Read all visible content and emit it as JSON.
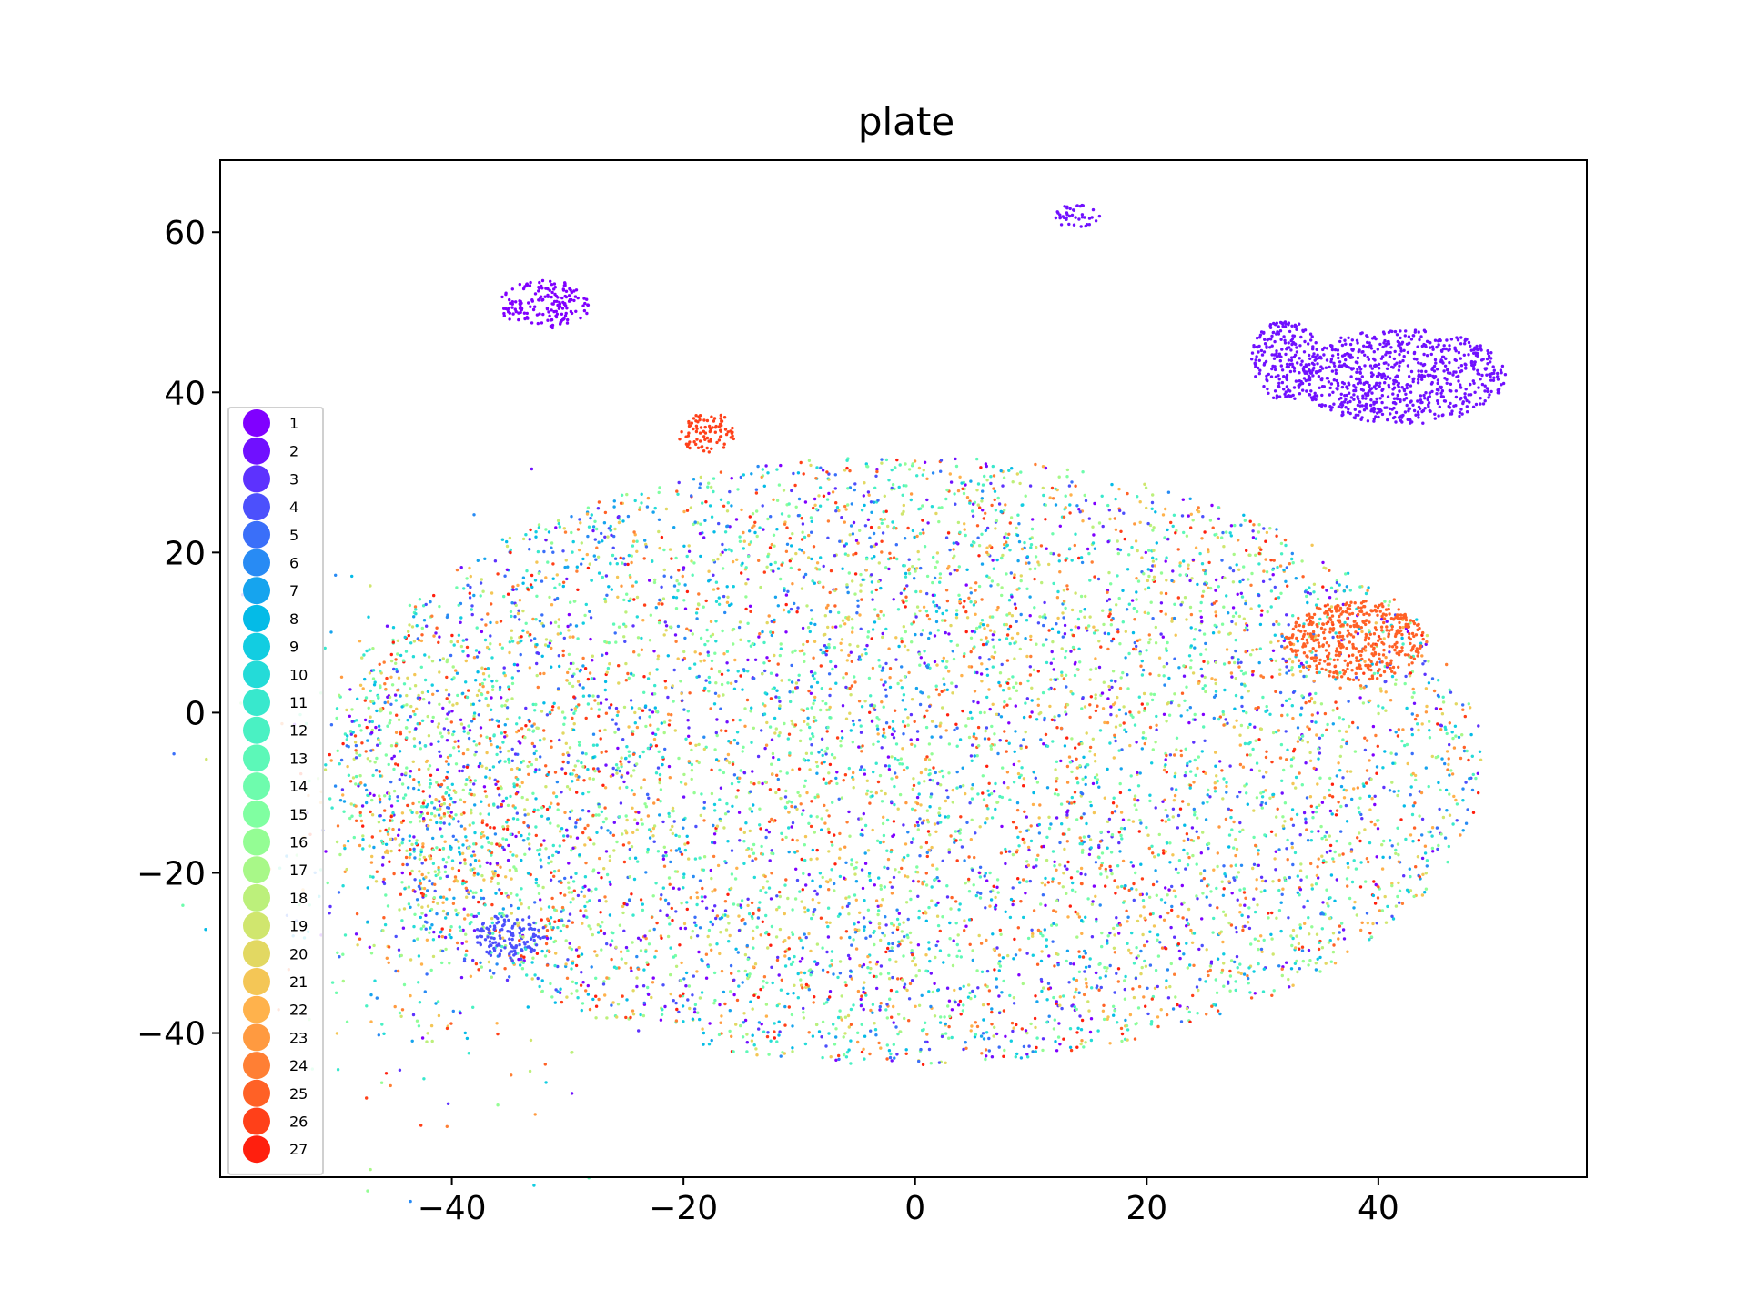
{
  "chart_data": {
    "type": "scatter",
    "title": "plate",
    "xlabel": "",
    "ylabel": "",
    "xlim": [
      -60,
      58
    ],
    "ylim": [
      -58,
      69
    ],
    "x_ticks": [
      -40,
      -20,
      0,
      20,
      40
    ],
    "y_ticks": [
      -40,
      -20,
      0,
      20,
      40,
      60
    ],
    "x_tick_labels": [
      "−40",
      "−20",
      "0",
      "20",
      "40"
    ],
    "y_tick_labels": [
      "−40",
      "−20",
      "0",
      "20",
      "40",
      "60"
    ],
    "grid": false,
    "legend_position": "left",
    "series": [
      {
        "name": "1",
        "color": "#8000ff"
      },
      {
        "name": "2",
        "color": "#7010ff"
      },
      {
        "name": "3",
        "color": "#5d32fe"
      },
      {
        "name": "4",
        "color": "#4c50fc"
      },
      {
        "name": "5",
        "color": "#3a6ff9"
      },
      {
        "name": "6",
        "color": "#288bf4"
      },
      {
        "name": "7",
        "color": "#16a4ee"
      },
      {
        "name": "8",
        "color": "#04bbe7"
      },
      {
        "name": "9",
        "color": "#12cde1"
      },
      {
        "name": "10",
        "color": "#24dbd8"
      },
      {
        "name": "11",
        "color": "#38e8cd"
      },
      {
        "name": "12",
        "color": "#4af1c3"
      },
      {
        "name": "13",
        "color": "#5cf8b8"
      },
      {
        "name": "14",
        "color": "#6efcad"
      },
      {
        "name": "15",
        "color": "#80ffa1"
      },
      {
        "name": "16",
        "color": "#94fd94"
      },
      {
        "name": "17",
        "color": "#a8f888"
      },
      {
        "name": "18",
        "color": "#bcf07b"
      },
      {
        "name": "19",
        "color": "#d0e66e"
      },
      {
        "name": "20",
        "color": "#e2d862"
      },
      {
        "name": "21",
        "color": "#f4c656"
      },
      {
        "name": "22",
        "color": "#ffb24c"
      },
      {
        "name": "23",
        "color": "#ff9a40"
      },
      {
        "name": "24",
        "color": "#ff7f34"
      },
      {
        "name": "25",
        "color": "#ff6126"
      },
      {
        "name": "26",
        "color": "#ff4019"
      },
      {
        "name": "27",
        "color": "#ff1f0e"
      }
    ],
    "clusters": [
      {
        "label": "2",
        "cx": 42,
        "cy": 42,
        "rx": 9,
        "ry": 6
      },
      {
        "label": "2",
        "cx": 32,
        "cy": 44,
        "rx": 3,
        "ry": 5
      },
      {
        "label": "1",
        "cx": -32,
        "cy": 51,
        "rx": 4,
        "ry": 3
      },
      {
        "label": "2",
        "cx": 14,
        "cy": 62,
        "rx": 2,
        "ry": 1.5
      },
      {
        "label": "26",
        "cx": -18,
        "cy": 35,
        "rx": 2.5,
        "ry": 2.5
      },
      {
        "label": "25",
        "cx": 38,
        "cy": 9,
        "rx": 6,
        "ry": 5
      },
      {
        "label": "4",
        "cx": -35,
        "cy": -28,
        "rx": 3,
        "ry": 3
      }
    ]
  }
}
